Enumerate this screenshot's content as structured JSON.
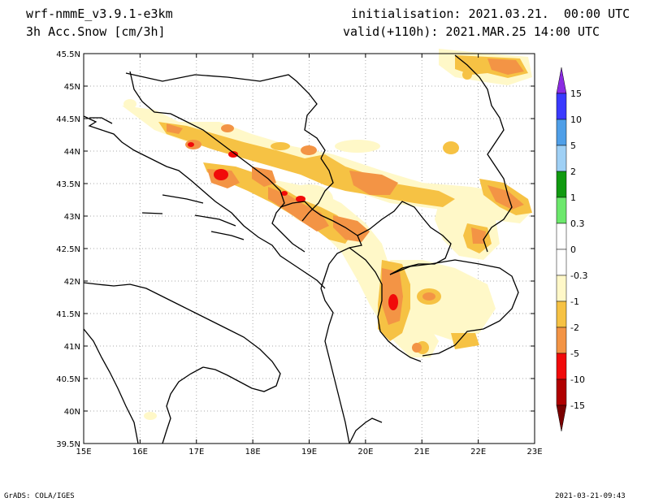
{
  "header": {
    "model": "wrf-nmmE_v3.9.1-e3km",
    "field": "3h Acc.Snow [cm/3h]",
    "init": "initialisation: 2021.03.21.  00:00 UTC",
    "valid": "valid(+110h): 2021.MAR.25 14:00 UTC"
  },
  "footer": {
    "left": "GrADS: COLA/IGES",
    "right": "2021-03-21-09:43"
  },
  "map": {
    "lon_ticks": [
      "15E",
      "16E",
      "17E",
      "18E",
      "19E",
      "20E",
      "21E",
      "22E",
      "23E"
    ],
    "lat_ticks": [
      "45.5N",
      "45N",
      "44.5N",
      "44N",
      "43.5N",
      "43N",
      "42.5N",
      "42N",
      "41.5N",
      "41N",
      "40.5N",
      "40N",
      "39.5N"
    ]
  },
  "colorbar": {
    "labels": [
      "15",
      "10",
      "5",
      "2",
      "1",
      "0.3",
      "0",
      "-0.3",
      "-1",
      "-2",
      "-5",
      "-10",
      "-15"
    ],
    "colors": [
      "#8a2be2",
      "#3a3aff",
      "#4f9fe8",
      "#9fd0f5",
      "#109a10",
      "#6ce86c",
      "#ffffff",
      "#ffffff",
      "#fff8c8",
      "#f6c244",
      "#f39445",
      "#f10a0a",
      "#b00000",
      "#7a0000"
    ]
  },
  "snow_colors": {
    "light": "#fff8c8",
    "low": "#f6c244",
    "mid": "#f39445",
    "high": "#f10a0a"
  }
}
